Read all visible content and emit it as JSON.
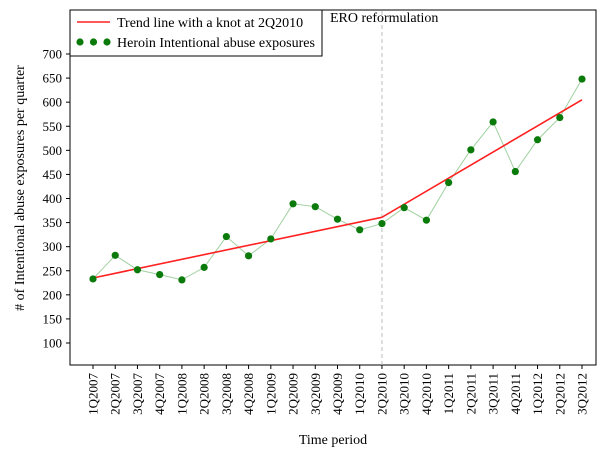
{
  "chart_data": {
    "type": "line",
    "xlabel": "Time period",
    "ylabel": "# of Intentional abuse exposures per quarter",
    "ylim": [
      50,
      730
    ],
    "yticks": [
      100,
      150,
      200,
      250,
      300,
      350,
      400,
      450,
      500,
      550,
      600,
      650,
      700
    ],
    "categories": [
      "1Q2007",
      "2Q2007",
      "3Q2007",
      "4Q2007",
      "1Q2008",
      "2Q2008",
      "3Q2008",
      "4Q2008",
      "1Q2009",
      "2Q2009",
      "3Q2009",
      "4Q2009",
      "1Q2010",
      "2Q2010",
      "3Q2010",
      "4Q2010",
      "1Q2011",
      "2Q2011",
      "3Q2011",
      "4Q2011",
      "1Q2012",
      "2Q2012",
      "3Q2012"
    ],
    "series": [
      {
        "name": "Heroin Intentional abuse exposures",
        "kind": "points",
        "color": "#0a7a0a",
        "line_color": "#9fd09f",
        "values": [
          233,
          282,
          252,
          242,
          231,
          257,
          321,
          281,
          316,
          389,
          383,
          357,
          335,
          348,
          381,
          355,
          433,
          501,
          559,
          456,
          522,
          568,
          648
        ]
      },
      {
        "name": "Trend line with a knot at 2Q2010",
        "kind": "trend",
        "color": "#ff2020",
        "points": [
          [
            "1Q2007",
            235
          ],
          [
            "2Q2010",
            361
          ],
          [
            "3Q2012",
            605
          ]
        ]
      }
    ],
    "annotations": [
      {
        "text": "ERO reformulation",
        "at": "2Q2010",
        "style": "dashed-vertical",
        "color": "#bbbbbb"
      }
    ],
    "legend": {
      "placement": "top-left",
      "boxed": true
    },
    "grid": false
  }
}
